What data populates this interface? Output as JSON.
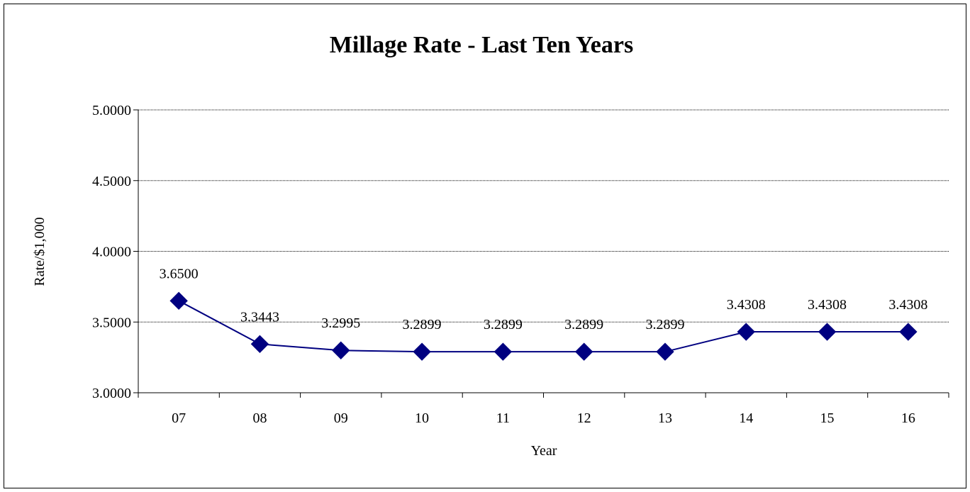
{
  "chart_data": {
    "type": "line",
    "title": "Millage Rate - Last Ten Years",
    "xlabel": "Year",
    "ylabel": "Rate/$1,000",
    "categories": [
      "07",
      "08",
      "09",
      "10",
      "11",
      "12",
      "13",
      "14",
      "15",
      "16"
    ],
    "series": [
      {
        "values": [
          3.65,
          3.3443,
          3.2995,
          3.2899,
          3.2899,
          3.2899,
          3.2899,
          3.4308,
          3.4308,
          3.4308
        ],
        "data_labels": [
          "3.6500",
          "3.3443",
          "3.2995",
          "3.2899",
          "3.2899",
          "3.2899",
          "3.2899",
          "3.4308",
          "3.4308",
          "3.4308"
        ],
        "color": "#000080",
        "marker": "diamond"
      }
    ],
    "ylim": [
      3.0,
      5.0
    ],
    "yticks": [
      3.0,
      3.5,
      4.0,
      4.5,
      5.0
    ],
    "ytick_labels": [
      "3.0000",
      "3.5000",
      "4.0000",
      "4.5000",
      "5.0000"
    ],
    "grid": true,
    "legend": "none"
  }
}
